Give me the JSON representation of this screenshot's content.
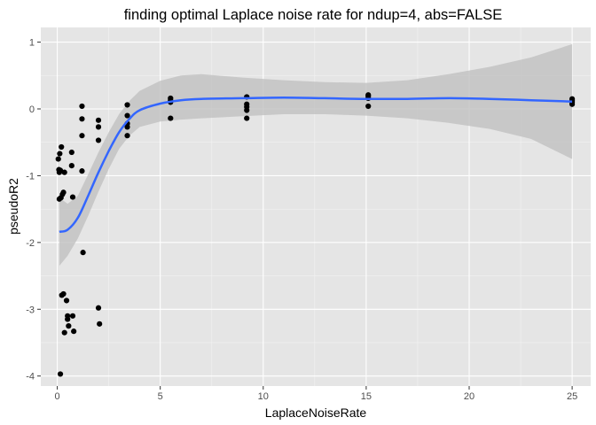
{
  "chart_data": {
    "type": "scatter",
    "title": "finding optimal Laplace noise rate for ndup=4, abs=FALSE",
    "xlabel": "LaplaceNoiseRate",
    "ylabel": "pseudoR2",
    "xlim": [
      -0.8,
      25.9
    ],
    "ylim": [
      -4.15,
      1.22
    ],
    "x_ticks": [
      0,
      5,
      10,
      15,
      20,
      25
    ],
    "y_ticks": [
      -4,
      -3,
      -2,
      -1,
      0,
      1
    ],
    "x_tick_labels": [
      "0",
      "5",
      "10",
      "15",
      "20",
      "25"
    ],
    "y_tick_labels": [
      "-4",
      "-3",
      "-2",
      "-1",
      "0",
      "1"
    ],
    "grid": true,
    "background": "#e5e5e5",
    "point_color": "#000000",
    "smooth_color": "#3366ff",
    "ribbon_color": "#bdbdbd",
    "points": [
      {
        "x": 0.05,
        "y": -0.75
      },
      {
        "x": 0.08,
        "y": -0.91
      },
      {
        "x": 0.1,
        "y": -0.95
      },
      {
        "x": 0.1,
        "y": -1.35
      },
      {
        "x": 0.12,
        "y": -0.67
      },
      {
        "x": 0.15,
        "y": -0.92
      },
      {
        "x": 0.18,
        "y": -1.33
      },
      {
        "x": 0.2,
        "y": -0.57
      },
      {
        "x": 0.25,
        "y": -1.28
      },
      {
        "x": 0.3,
        "y": -1.25
      },
      {
        "x": 0.35,
        "y": -0.95
      },
      {
        "x": 0.15,
        "y": -3.97
      },
      {
        "x": 0.22,
        "y": -2.79
      },
      {
        "x": 0.3,
        "y": -2.77
      },
      {
        "x": 0.35,
        "y": -3.35
      },
      {
        "x": 0.45,
        "y": -2.87
      },
      {
        "x": 0.5,
        "y": -3.1
      },
      {
        "x": 0.5,
        "y": -3.15
      },
      {
        "x": 0.55,
        "y": -3.25
      },
      {
        "x": 0.7,
        "y": -0.65
      },
      {
        "x": 0.7,
        "y": -0.85
      },
      {
        "x": 0.75,
        "y": -1.32
      },
      {
        "x": 0.75,
        "y": -3.1
      },
      {
        "x": 0.8,
        "y": -3.33
      },
      {
        "x": 1.2,
        "y": 0.04
      },
      {
        "x": 1.2,
        "y": -0.15
      },
      {
        "x": 1.2,
        "y": -0.4
      },
      {
        "x": 1.2,
        "y": -0.93
      },
      {
        "x": 1.25,
        "y": -2.15
      },
      {
        "x": 2.0,
        "y": -0.17
      },
      {
        "x": 2.0,
        "y": -0.27
      },
      {
        "x": 2.0,
        "y": -0.47
      },
      {
        "x": 2.0,
        "y": -2.98
      },
      {
        "x": 2.05,
        "y": -3.22
      },
      {
        "x": 3.4,
        "y": 0.06
      },
      {
        "x": 3.4,
        "y": -0.1
      },
      {
        "x": 3.4,
        "y": -0.22
      },
      {
        "x": 3.4,
        "y": -0.27
      },
      {
        "x": 3.4,
        "y": -0.4
      },
      {
        "x": 5.5,
        "y": 0.16
      },
      {
        "x": 5.5,
        "y": 0.13
      },
      {
        "x": 5.5,
        "y": 0.1
      },
      {
        "x": 5.5,
        "y": -0.14
      },
      {
        "x": 9.2,
        "y": 0.18
      },
      {
        "x": 9.2,
        "y": 0.07
      },
      {
        "x": 9.2,
        "y": 0.03
      },
      {
        "x": 9.2,
        "y": -0.02
      },
      {
        "x": 9.2,
        "y": -0.14
      },
      {
        "x": 15.1,
        "y": 0.21
      },
      {
        "x": 15.1,
        "y": 0.19
      },
      {
        "x": 15.1,
        "y": 0.16
      },
      {
        "x": 15.1,
        "y": 0.04
      },
      {
        "x": 25.0,
        "y": 0.15
      },
      {
        "x": 25.0,
        "y": 0.13
      },
      {
        "x": 25.0,
        "y": 0.1
      },
      {
        "x": 25.0,
        "y": 0.07
      }
    ],
    "smooth": [
      {
        "x": 0.1,
        "y": -1.84,
        "lo": -2.35,
        "hi": -1.33
      },
      {
        "x": 0.5,
        "y": -1.81,
        "lo": -2.2,
        "hi": -1.42
      },
      {
        "x": 1.0,
        "y": -1.63,
        "lo": -1.94,
        "hi": -1.3
      },
      {
        "x": 1.5,
        "y": -1.3,
        "lo": -1.6,
        "hi": -0.98
      },
      {
        "x": 2.0,
        "y": -0.95,
        "lo": -1.24,
        "hi": -0.65
      },
      {
        "x": 2.5,
        "y": -0.63,
        "lo": -0.9,
        "hi": -0.35
      },
      {
        "x": 3.0,
        "y": -0.35,
        "lo": -0.6,
        "hi": -0.08
      },
      {
        "x": 3.5,
        "y": -0.15,
        "lo": -0.4,
        "hi": 0.12
      },
      {
        "x": 4.0,
        "y": -0.02,
        "lo": -0.27,
        "hi": 0.27
      },
      {
        "x": 5.0,
        "y": 0.08,
        "lo": -0.19,
        "hi": 0.42
      },
      {
        "x": 6.0,
        "y": 0.13,
        "lo": -0.16,
        "hi": 0.5
      },
      {
        "x": 7.0,
        "y": 0.15,
        "lo": -0.14,
        "hi": 0.52
      },
      {
        "x": 9.0,
        "y": 0.16,
        "lo": -0.11,
        "hi": 0.47
      },
      {
        "x": 11.0,
        "y": 0.17,
        "lo": -0.08,
        "hi": 0.43
      },
      {
        "x": 13.0,
        "y": 0.16,
        "lo": -0.08,
        "hi": 0.4
      },
      {
        "x": 15.0,
        "y": 0.15,
        "lo": -0.1,
        "hi": 0.39
      },
      {
        "x": 17.0,
        "y": 0.15,
        "lo": -0.14,
        "hi": 0.43
      },
      {
        "x": 19.0,
        "y": 0.16,
        "lo": -0.21,
        "hi": 0.52
      },
      {
        "x": 21.0,
        "y": 0.15,
        "lo": -0.3,
        "hi": 0.63
      },
      {
        "x": 23.0,
        "y": 0.13,
        "lo": -0.45,
        "hi": 0.77
      },
      {
        "x": 25.0,
        "y": 0.11,
        "lo": -0.75,
        "hi": 0.97
      }
    ]
  }
}
